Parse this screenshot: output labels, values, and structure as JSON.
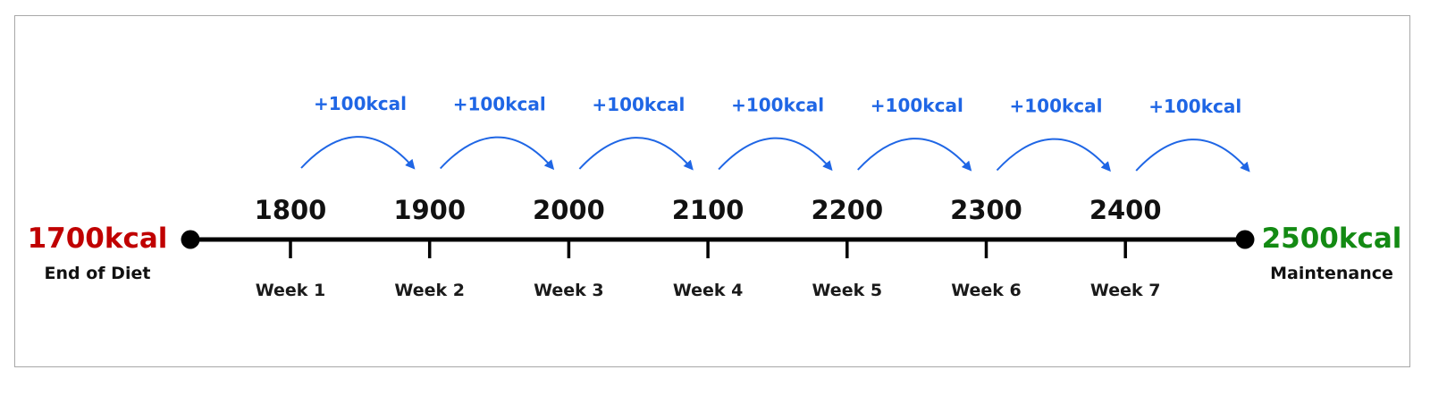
{
  "start": {
    "value": "1700kcal",
    "caption": "End of Diet",
    "color": "#c00000"
  },
  "end": {
    "value": "2500kcal",
    "caption": "Maintenance",
    "color": "#138a13"
  },
  "increment_color": "#1f66e5",
  "line_color": "#000000",
  "steps": [
    {
      "calories": "1800",
      "week": "Week 1",
      "increment": "+100kcal"
    },
    {
      "calories": "1900",
      "week": "Week 2",
      "increment": "+100kcal"
    },
    {
      "calories": "2000",
      "week": "Week 3",
      "increment": "+100kcal"
    },
    {
      "calories": "2100",
      "week": "Week 4",
      "increment": "+100kcal"
    },
    {
      "calories": "2200",
      "week": "Week 5",
      "increment": "+100kcal"
    },
    {
      "calories": "2300",
      "week": "Week 6",
      "increment": "+100kcal"
    },
    {
      "calories": "2400",
      "week": "Week 7",
      "increment": "+100kcal"
    }
  ]
}
